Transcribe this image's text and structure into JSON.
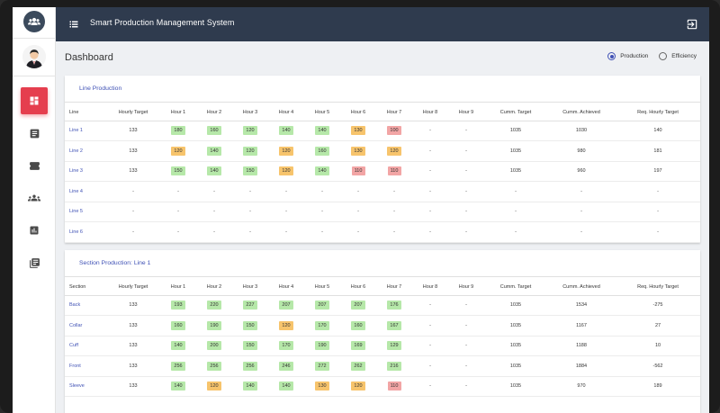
{
  "header": {
    "title": "Smart Production Management System"
  },
  "page": {
    "title": "Dashboard"
  },
  "view_toggle": {
    "production_label": "Production",
    "efficiency_label": "Efficiency",
    "selected": "Production"
  },
  "colors": {
    "green": "#b6e8a9",
    "orange": "#f7c46c",
    "red": "#f2a5a5",
    "accent": "#e53e4e",
    "topbar": "#2f3b4e",
    "link": "#3f51b5"
  },
  "sidebar": {
    "icons": [
      "users-logo-icon",
      "user-avatar",
      "dashboard-icon",
      "document-icon",
      "ticket-icon",
      "group-icon",
      "chart-icon",
      "library-icon"
    ]
  },
  "line_production": {
    "title": "Line Production",
    "columns": [
      "Line",
      "Hourly Target",
      "Hour 1",
      "Hour 2",
      "Hour 3",
      "Hour 4",
      "Hour 5",
      "Hour 6",
      "Hour 7",
      "Hour 8",
      "Hour 9",
      "Cumm. Target",
      "Cumm. Achieved",
      "Req. Hourly Target"
    ],
    "rows": [
      {
        "name": "Line 1",
        "target": "133",
        "hours": [
          {
            "v": "180",
            "c": "g"
          },
          {
            "v": "160",
            "c": "g"
          },
          {
            "v": "120",
            "c": "g"
          },
          {
            "v": "140",
            "c": "g"
          },
          {
            "v": "140",
            "c": "g"
          },
          {
            "v": "130",
            "c": "o"
          },
          {
            "v": "100",
            "c": "r"
          },
          {
            "v": "-",
            "c": ""
          },
          {
            "v": "-",
            "c": ""
          }
        ],
        "cumm_target": "1035",
        "cumm_achieved": "1030",
        "req": "140"
      },
      {
        "name": "Line 2",
        "target": "133",
        "hours": [
          {
            "v": "120",
            "c": "o"
          },
          {
            "v": "140",
            "c": "g"
          },
          {
            "v": "120",
            "c": "g"
          },
          {
            "v": "120",
            "c": "o"
          },
          {
            "v": "160",
            "c": "g"
          },
          {
            "v": "130",
            "c": "o"
          },
          {
            "v": "120",
            "c": "o"
          },
          {
            "v": "-",
            "c": ""
          },
          {
            "v": "-",
            "c": ""
          }
        ],
        "cumm_target": "1035",
        "cumm_achieved": "980",
        "req": "181"
      },
      {
        "name": "Line 3",
        "target": "133",
        "hours": [
          {
            "v": "150",
            "c": "g"
          },
          {
            "v": "140",
            "c": "g"
          },
          {
            "v": "150",
            "c": "g"
          },
          {
            "v": "120",
            "c": "o"
          },
          {
            "v": "140",
            "c": "g"
          },
          {
            "v": "110",
            "c": "r"
          },
          {
            "v": "110",
            "c": "r"
          },
          {
            "v": "-",
            "c": ""
          },
          {
            "v": "-",
            "c": ""
          }
        ],
        "cumm_target": "1035",
        "cumm_achieved": "960",
        "req": "197"
      },
      {
        "name": "Line 4",
        "target": "-",
        "hours": [
          {
            "v": "-",
            "c": ""
          },
          {
            "v": "-",
            "c": ""
          },
          {
            "v": "-",
            "c": ""
          },
          {
            "v": "-",
            "c": ""
          },
          {
            "v": "-",
            "c": ""
          },
          {
            "v": "-",
            "c": ""
          },
          {
            "v": "-",
            "c": ""
          },
          {
            "v": "-",
            "c": ""
          },
          {
            "v": "-",
            "c": ""
          }
        ],
        "cumm_target": "-",
        "cumm_achieved": "-",
        "req": "-"
      },
      {
        "name": "Line 5",
        "target": "-",
        "hours": [
          {
            "v": "-",
            "c": ""
          },
          {
            "v": "-",
            "c": ""
          },
          {
            "v": "-",
            "c": ""
          },
          {
            "v": "-",
            "c": ""
          },
          {
            "v": "-",
            "c": ""
          },
          {
            "v": "-",
            "c": ""
          },
          {
            "v": "-",
            "c": ""
          },
          {
            "v": "-",
            "c": ""
          },
          {
            "v": "-",
            "c": ""
          }
        ],
        "cumm_target": "-",
        "cumm_achieved": "-",
        "req": "-"
      },
      {
        "name": "Line 6",
        "target": "-",
        "hours": [
          {
            "v": "-",
            "c": ""
          },
          {
            "v": "-",
            "c": ""
          },
          {
            "v": "-",
            "c": ""
          },
          {
            "v": "-",
            "c": ""
          },
          {
            "v": "-",
            "c": ""
          },
          {
            "v": "-",
            "c": ""
          },
          {
            "v": "-",
            "c": ""
          },
          {
            "v": "-",
            "c": ""
          },
          {
            "v": "-",
            "c": ""
          }
        ],
        "cumm_target": "-",
        "cumm_achieved": "-",
        "req": "-"
      }
    ]
  },
  "section_production": {
    "title": "Section Production: Line 1",
    "columns": [
      "Section",
      "Hourly Target",
      "Hour 1",
      "Hour 2",
      "Hour 3",
      "Hour 4",
      "Hour 5",
      "Hour 6",
      "Hour 7",
      "Hour 8",
      "Hour 9",
      "Cumm. Target",
      "Cumm. Achieved",
      "Req. Hourly Target"
    ],
    "rows": [
      {
        "name": "Back",
        "target": "133",
        "hours": [
          {
            "v": "193",
            "c": "g"
          },
          {
            "v": "220",
            "c": "g"
          },
          {
            "v": "227",
            "c": "g"
          },
          {
            "v": "207",
            "c": "g"
          },
          {
            "v": "207",
            "c": "g"
          },
          {
            "v": "207",
            "c": "g"
          },
          {
            "v": "176",
            "c": "g"
          },
          {
            "v": "-",
            "c": ""
          },
          {
            "v": "-",
            "c": ""
          }
        ],
        "cumm_target": "1035",
        "cumm_achieved": "1534",
        "req": "-275"
      },
      {
        "name": "Collar",
        "target": "133",
        "hours": [
          {
            "v": "160",
            "c": "g"
          },
          {
            "v": "190",
            "c": "g"
          },
          {
            "v": "150",
            "c": "g"
          },
          {
            "v": "120",
            "c": "o"
          },
          {
            "v": "170",
            "c": "g"
          },
          {
            "v": "160",
            "c": "g"
          },
          {
            "v": "167",
            "c": "g"
          },
          {
            "v": "-",
            "c": ""
          },
          {
            "v": "-",
            "c": ""
          }
        ],
        "cumm_target": "1035",
        "cumm_achieved": "1167",
        "req": "27"
      },
      {
        "name": "Cuff",
        "target": "133",
        "hours": [
          {
            "v": "140",
            "c": "g"
          },
          {
            "v": "200",
            "c": "g"
          },
          {
            "v": "150",
            "c": "g"
          },
          {
            "v": "170",
            "c": "g"
          },
          {
            "v": "190",
            "c": "g"
          },
          {
            "v": "169",
            "c": "g"
          },
          {
            "v": "129",
            "c": "g"
          },
          {
            "v": "-",
            "c": ""
          },
          {
            "v": "-",
            "c": ""
          }
        ],
        "cumm_target": "1035",
        "cumm_achieved": "1188",
        "req": "10"
      },
      {
        "name": "Front",
        "target": "133",
        "hours": [
          {
            "v": "256",
            "c": "g"
          },
          {
            "v": "256",
            "c": "g"
          },
          {
            "v": "256",
            "c": "g"
          },
          {
            "v": "246",
            "c": "g"
          },
          {
            "v": "272",
            "c": "g"
          },
          {
            "v": "262",
            "c": "g"
          },
          {
            "v": "216",
            "c": "g"
          },
          {
            "v": "-",
            "c": ""
          },
          {
            "v": "-",
            "c": ""
          }
        ],
        "cumm_target": "1035",
        "cumm_achieved": "1884",
        "req": "-562"
      },
      {
        "name": "Sleeve",
        "target": "133",
        "hours": [
          {
            "v": "140",
            "c": "g"
          },
          {
            "v": "120",
            "c": "o"
          },
          {
            "v": "140",
            "c": "g"
          },
          {
            "v": "140",
            "c": "g"
          },
          {
            "v": "130",
            "c": "o"
          },
          {
            "v": "120",
            "c": "o"
          },
          {
            "v": "110",
            "c": "r"
          },
          {
            "v": "-",
            "c": ""
          },
          {
            "v": "-",
            "c": ""
          }
        ],
        "cumm_target": "1035",
        "cumm_achieved": "970",
        "req": "189"
      }
    ]
  }
}
